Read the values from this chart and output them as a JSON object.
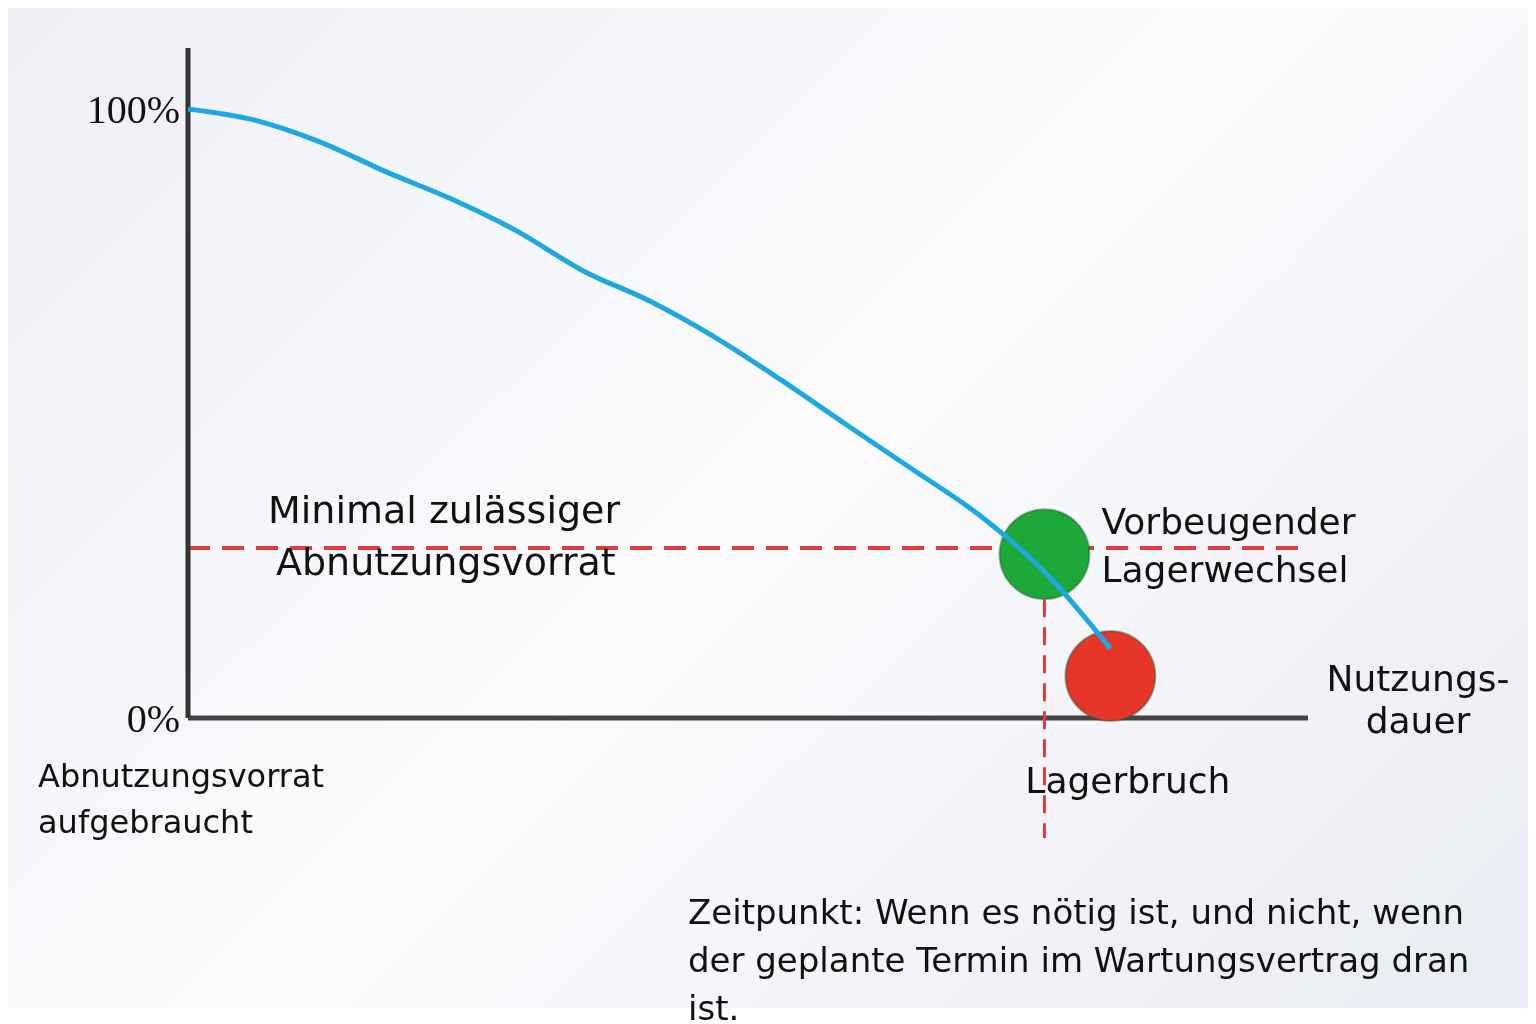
{
  "chart_data": {
    "type": "line",
    "categories": [
      null,
      null,
      null,
      null,
      null,
      null,
      null,
      null,
      null,
      null,
      null,
      null,
      null,
      null,
      null,
      null,
      null,
      null
    ],
    "series": [
      {
        "color": "#1ea8e0",
        "values": [
          100,
          98.2,
          94.6,
          89.7,
          85.2,
          79.9,
          73.4,
          68.5,
          62.5,
          55.5,
          48.1,
          40.8,
          33.4,
          24,
          11.4,
          null,
          null,
          null
        ]
      },
      {
        "type": "scatter",
        "marker": "circle",
        "name": "Vorbeugender Lagerwechsel",
        "color": "#1fa83a",
        "values": [
          null,
          null,
          null,
          null,
          null,
          null,
          null,
          null,
          null,
          null,
          null,
          null,
          null,
          26.9,
          null,
          null,
          null,
          null
        ]
      },
      {
        "type": "scatter",
        "marker": "circle",
        "name": "Lagerbruch",
        "color": "#e8352a",
        "values": [
          null,
          null,
          null,
          null,
          null,
          null,
          null,
          null,
          null,
          null,
          null,
          null,
          null,
          null,
          6.9,
          null,
          null,
          null
        ]
      }
    ],
    "ylim": [
      0,
      110
    ],
    "yticks": [
      {
        "value": 0,
        "label": "0%"
      },
      {
        "value": 100,
        "label": "100%"
      }
    ],
    "xlabel": "Nutzungs-dauer",
    "ref_lines": [
      {
        "axis": "y",
        "value": 27.9,
        "label": "Minimal zulässiger Abnutzungsvorrat",
        "color": "#e03c3c",
        "line_style": "dashed"
      }
    ],
    "annotations": [
      "Abnutzungsvorrat aufgebraucht",
      "Zeitpunkt: Wenn es nötig ist, und nicht, wenn der geplante Termin im Wartungsvertrag dran ist."
    ],
    "grid": false,
    "marker": "none"
  }
}
